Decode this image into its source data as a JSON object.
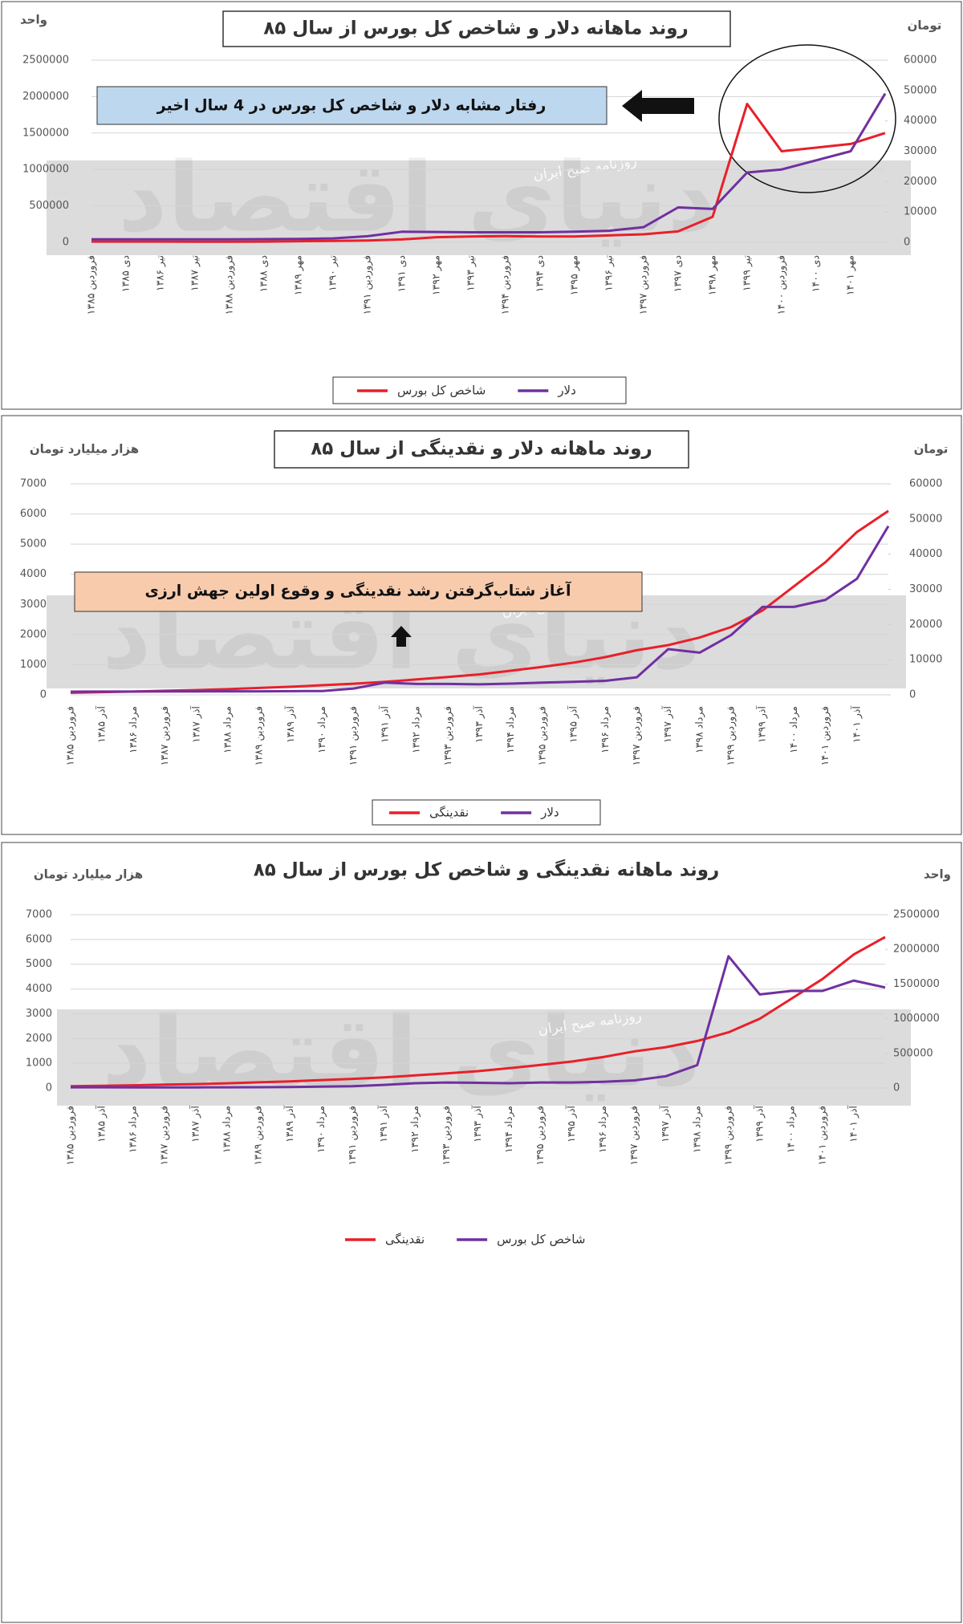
{
  "chart_data": [
    {
      "type": "line",
      "title": "روند ماهانه دلار و شاخص کل بورس از سال ۸۵",
      "ylabel": "واحد",
      "y2label": "تومان",
      "annotation": "رفتار مشابه دلار و شاخص کل بورس در 4 سال اخیر",
      "watermark": "روزنامه صبح ایران",
      "logo_watermark": "دنیای اقتصاد",
      "categories": [
        "فروردین ۱۳۸۵",
        "دی ۱۳۸۵",
        "تیر ۱۳۸۶",
        "تیر ۱۳۸۷",
        "فروردین ۱۳۸۸",
        "دی ۱۳۸۸",
        "مهر ۱۳۸۹",
        "تیر ۱۳۹۰",
        "فروردین ۱۳۹۱",
        "دی ۱۳۹۱",
        "مهر ۱۳۹۲",
        "تیر ۱۳۹۳",
        "فروردین ۱۳۹۴",
        "دی ۱۳۹۴",
        "مهر ۱۳۹۵",
        "تیر ۱۳۹۶",
        "فروردین ۱۳۹۷",
        "دی ۱۳۹۷",
        "مهر ۱۳۹۸",
        "تیر ۱۳۹۹",
        "فروردین ۱۴۰۰",
        "دی ۱۴۰۰",
        "مهر ۱۴۰۱",
        null
      ],
      "series": [
        {
          "name": "شاخص کل بورس",
          "color": "#e8202a",
          "values": [
            10000,
            10000,
            10000,
            9000,
            9000,
            10000,
            15000,
            20000,
            25000,
            40000,
            70000,
            80000,
            85000,
            80000,
            80000,
            95000,
            110000,
            150000,
            350000,
            1900000,
            1250000,
            1300000,
            1350000,
            1500000
          ]
        },
        {
          "name": "دلار",
          "color": "#7030a0",
          "axis": "y2",
          "values": [
            1000,
            1000,
            1000,
            1000,
            1000,
            1050,
            1100,
            1300,
            2000,
            3500,
            3400,
            3300,
            3300,
            3300,
            3500,
            3800,
            5000,
            11500,
            11000,
            23000,
            24000,
            27000,
            30000,
            49000
          ]
        }
      ],
      "ylim": [
        0,
        2500000
      ],
      "yticks": [
        0,
        500000,
        1000000,
        1500000,
        2000000,
        2500000
      ],
      "y2lim": [
        0,
        60000
      ],
      "y2ticks": [
        0,
        10000,
        20000,
        30000,
        40000,
        50000,
        60000
      ],
      "grid": true
    },
    {
      "type": "line",
      "title": "روند ماهانه دلار و نقدینگی از سال ۸۵",
      "ylabel": "هزار میلیارد تومان",
      "y2label": "تومان",
      "annotation": "آغاز شتاب‌گرفتن رشد نقدینگی و وقوع اولین جهش ارزی",
      "watermark": "روزنامه صبح ایران",
      "logo_watermark": "دنیای اقتصاد",
      "categories": [
        "فروردین ۱۳۸۵",
        "آذر ۱۳۸۵",
        "مرداد ۱۳۸۶",
        "فروردین ۱۳۸۷",
        "آذر ۱۳۸۷",
        "مرداد ۱۳۸۸",
        "فروردین ۱۳۸۹",
        "آذر ۱۳۸۹",
        "مرداد ۱۳۹۰",
        "فروردین ۱۳۹۱",
        "آذر ۱۳۹۱",
        "مرداد ۱۳۹۲",
        "فروردین ۱۳۹۳",
        "آذر ۱۳۹۳",
        "مرداد ۱۳۹۴",
        "فروردین ۱۳۹۵",
        "آذر ۱۳۹۵",
        "مرداد ۱۳۹۶",
        "فروردین ۱۳۹۷",
        "آذر ۱۳۹۷",
        "مرداد ۱۳۹۸",
        "فروردین ۱۳۹۹",
        "آذر ۱۳۹۹",
        "مرداد ۱۴۰۰",
        "فروردین ۱۴۰۱",
        "آذر ۱۴۰۱",
        null
      ],
      "series": [
        {
          "name": "نقدینگی",
          "color": "#e8202a",
          "values": [
            70,
            90,
            110,
            135,
            160,
            190,
            230,
            270,
            320,
            370,
            430,
            510,
            590,
            680,
            800,
            930,
            1070,
            1250,
            1480,
            1650,
            1900,
            2250,
            2800,
            3600,
            4400,
            5400,
            6100
          ]
        },
        {
          "name": "دلار",
          "color": "#7030a0",
          "axis": "y2",
          "values": [
            920,
            930,
            940,
            950,
            970,
            1000,
            1000,
            1050,
            1100,
            1800,
            3500,
            3100,
            3100,
            3000,
            3200,
            3500,
            3700,
            4000,
            5000,
            13000,
            12000,
            17000,
            25000,
            25000,
            27000,
            33000,
            48000
          ]
        }
      ],
      "ylim": [
        0,
        7000
      ],
      "yticks": [
        0,
        1000,
        2000,
        3000,
        4000,
        5000,
        6000,
        7000
      ],
      "y2lim": [
        0,
        60000
      ],
      "y2ticks": [
        0,
        10000,
        20000,
        30000,
        40000,
        50000,
        60000
      ],
      "grid": true
    },
    {
      "type": "line",
      "title": "روند ماهانه نقدینگی و شاخص کل بورس از سال ۸۵",
      "ylabel": "هزار میلیارد تومان",
      "y2label": "واحد",
      "watermark": "روزنامه صبح ایران",
      "logo_watermark": "دنیای اقتصاد",
      "categories": [
        "فروردین ۱۳۸۵",
        "آذر ۱۳۸۵",
        "مرداد ۱۳۸۶",
        "فروردین ۱۳۸۷",
        "آذر ۱۳۸۷",
        "مرداد ۱۳۸۸",
        "فروردین ۱۳۸۹",
        "آذر ۱۳۸۹",
        "مرداد ۱۳۹۰",
        "فروردین ۱۳۹۱",
        "آذر ۱۳۹۱",
        "مرداد ۱۳۹۲",
        "فروردین ۱۳۹۳",
        "آذر ۱۳۹۳",
        "مرداد ۱۳۹۴",
        "فروردین ۱۳۹۵",
        "آذر ۱۳۹۵",
        "مرداد ۱۳۹۶",
        "فروردین ۱۳۹۷",
        "آذر ۱۳۹۷",
        "مرداد ۱۳۹۸",
        "فروردین ۱۳۹۹",
        "آذر ۱۳۹۹",
        "مرداد ۱۴۰۰",
        "فروردین ۱۴۰۱",
        "آذر ۱۴۰۱",
        null
      ],
      "series": [
        {
          "name": "نقدینگی",
          "color": "#e8202a",
          "values": [
            70,
            90,
            110,
            135,
            160,
            190,
            230,
            270,
            320,
            370,
            430,
            510,
            590,
            680,
            800,
            930,
            1070,
            1250,
            1480,
            1650,
            1900,
            2250,
            2800,
            3600,
            4400,
            5400,
            6100
          ]
        },
        {
          "name": "شاخص کل بورس",
          "color": "#7030a0",
          "axis": "y2",
          "values": [
            10000,
            10000,
            9000,
            9000,
            9000,
            10000,
            12000,
            15000,
            20000,
            27000,
            45000,
            70000,
            80000,
            75000,
            70000,
            80000,
            80000,
            90000,
            110000,
            170000,
            330000,
            1900000,
            1350000,
            1400000,
            1400000,
            1550000,
            1450000
          ]
        }
      ],
      "ylim": [
        0,
        7000
      ],
      "yticks": [
        0,
        1000,
        2000,
        3000,
        4000,
        5000,
        6000,
        7000
      ],
      "y2lim": [
        0,
        2500000
      ],
      "y2ticks": [
        0,
        500000,
        1000000,
        1500000,
        2000000,
        2500000
      ],
      "grid": true
    }
  ]
}
